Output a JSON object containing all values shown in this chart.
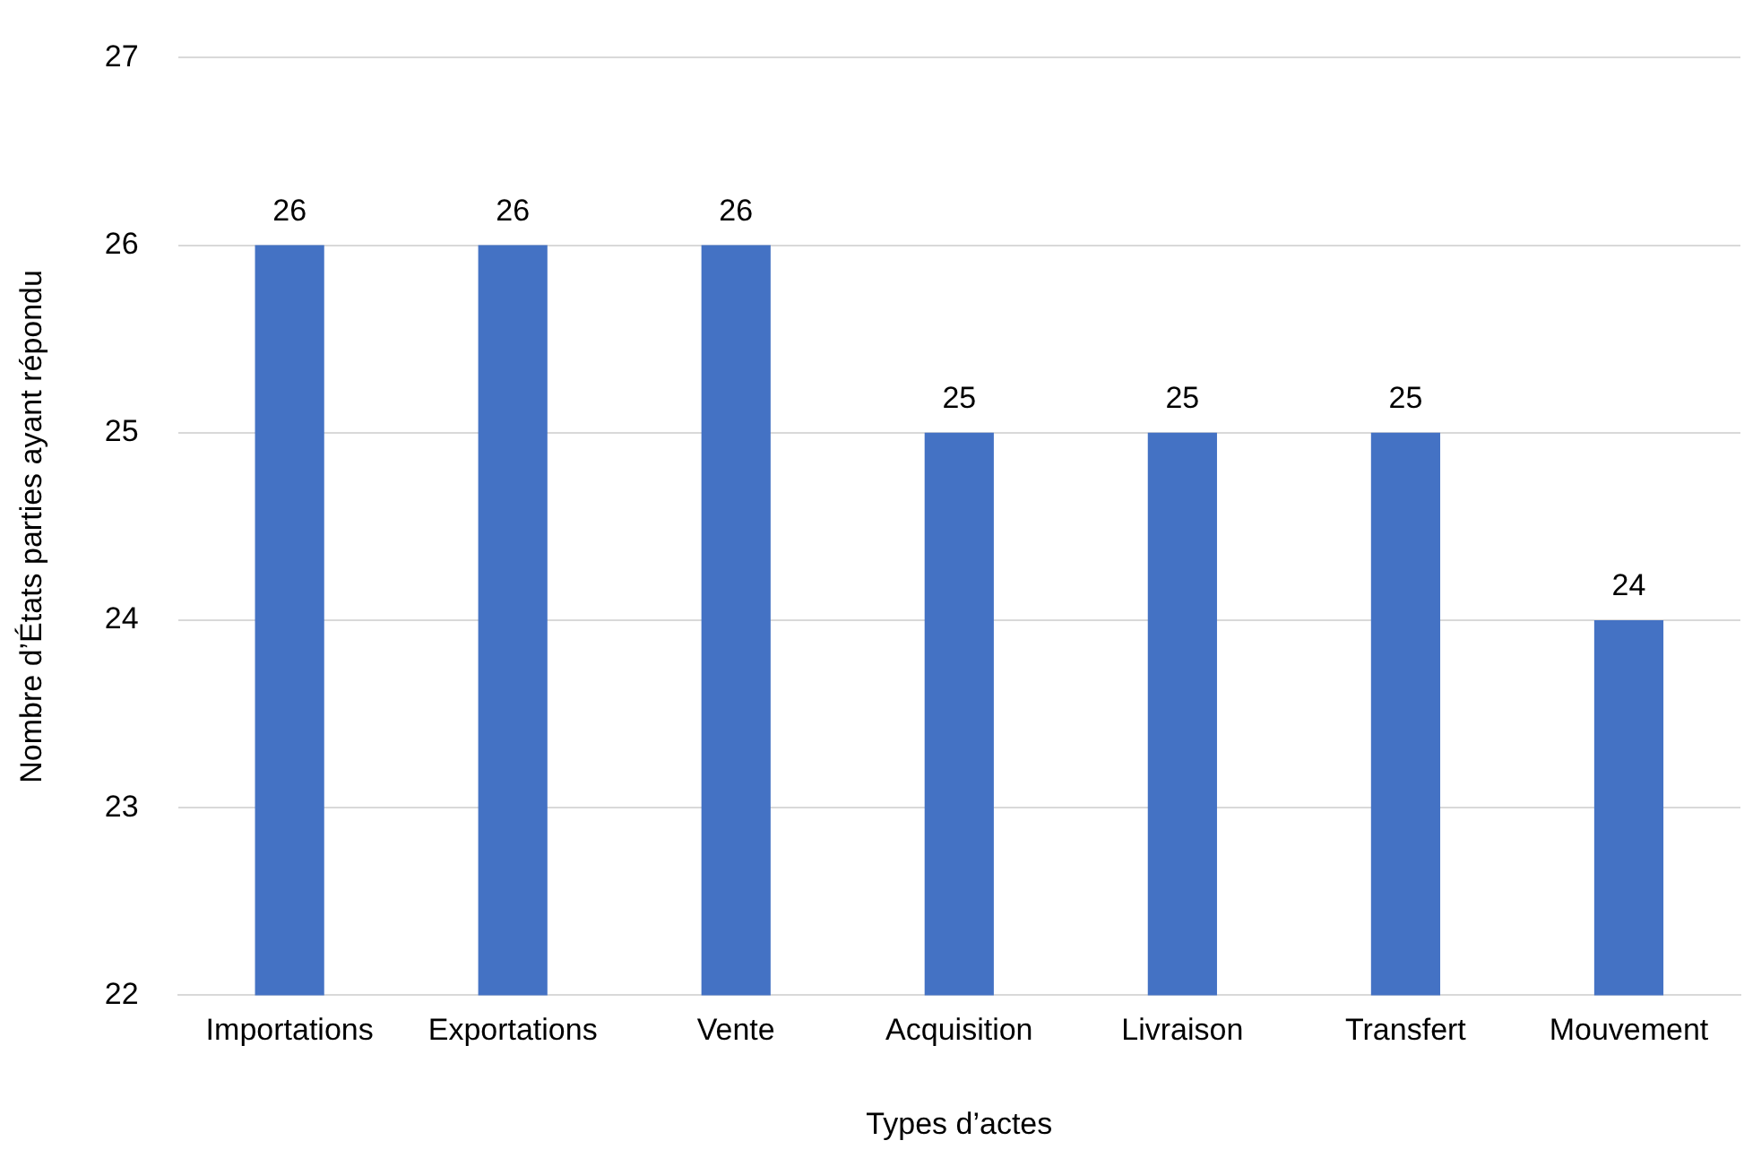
{
  "chart_data": {
    "type": "bar",
    "xlabel": "Types d’actes",
    "ylabel": "Nombre d’États parties ayant répondu",
    "categories": [
      "Importations",
      "Exportations",
      "Vente",
      "Acquisition",
      "Livraison",
      "Transfert",
      "Mouvement"
    ],
    "values": [
      26,
      26,
      26,
      25,
      25,
      25,
      24
    ],
    "color": "#4472c4",
    "ylim": [
      22,
      27
    ],
    "yticks": [
      22,
      23,
      24,
      25,
      26,
      27
    ],
    "grid": "y",
    "data_labels": true
  }
}
